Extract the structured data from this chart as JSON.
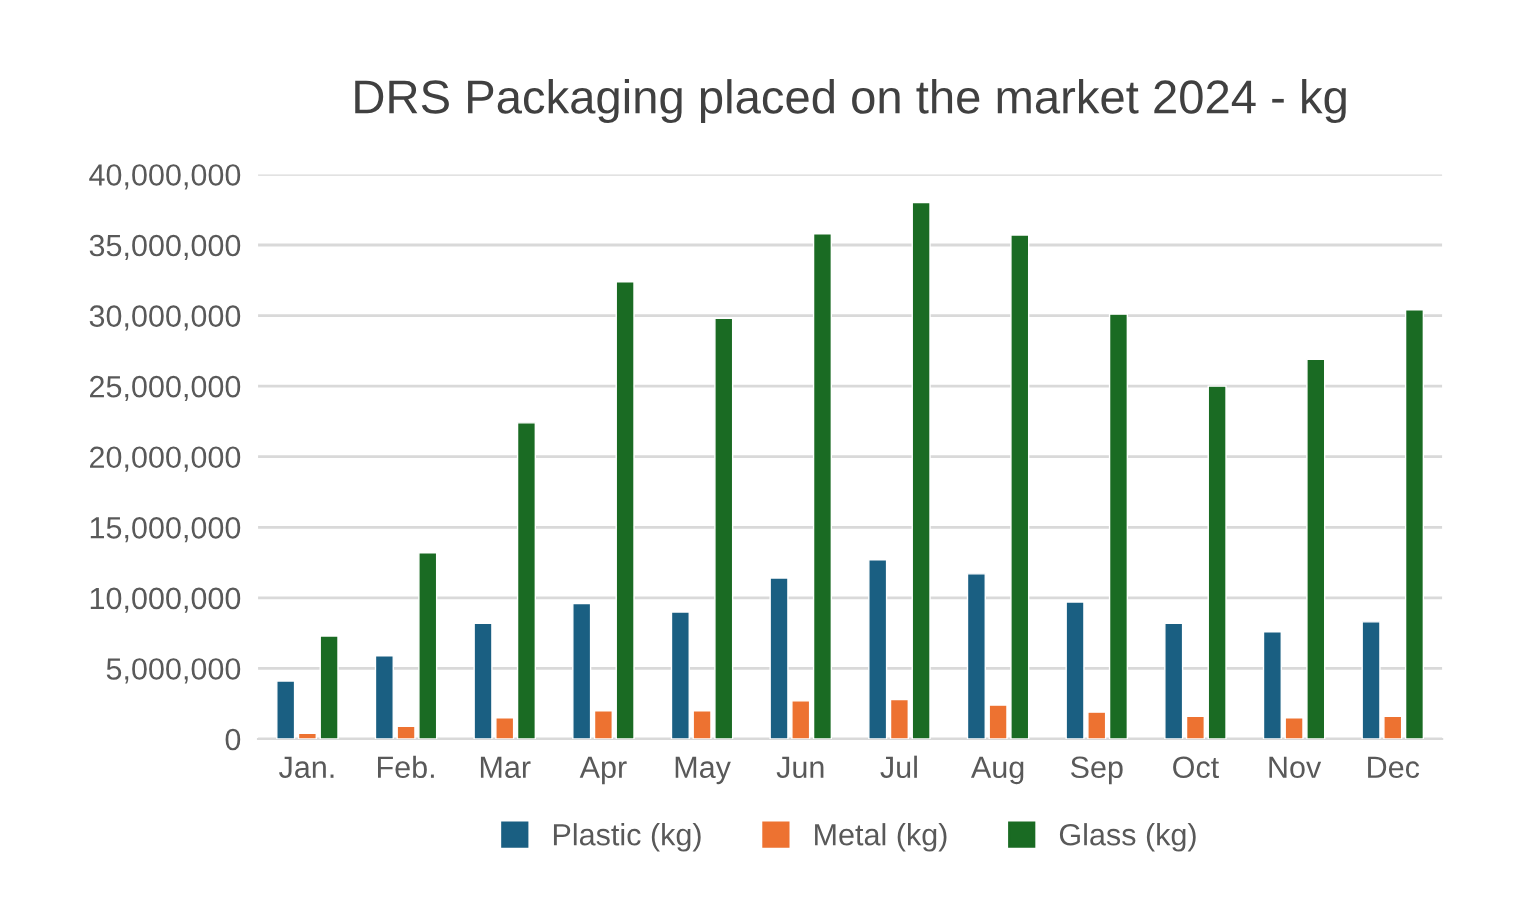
{
  "chart_data": {
    "type": "bar",
    "title": "DRS Packaging placed on the market 2024 - kg",
    "categories": [
      "Jan.",
      "Feb.",
      "Mar",
      "Apr",
      "May",
      "Jun",
      "Jul",
      "Aug",
      "Sep",
      "Oct",
      "Nov",
      "Dec"
    ],
    "series": [
      {
        "name": "Plastic (kg)",
        "color": "#1a5f82",
        "values": [
          4100000,
          5900000,
          8200000,
          9600000,
          9000000,
          11400000,
          12700000,
          11700000,
          9700000,
          8200000,
          7600000,
          8300000
        ]
      },
      {
        "name": "Metal (kg)",
        "color": "#ed7231",
        "values": [
          400000,
          900000,
          1500000,
          2000000,
          2000000,
          2700000,
          2800000,
          2400000,
          1900000,
          1600000,
          1500000,
          1600000
        ]
      },
      {
        "name": "Glass (kg)",
        "color": "#1a6b23",
        "values": [
          7300000,
          13200000,
          22400000,
          32400000,
          29800000,
          35800000,
          38000000,
          35700000,
          30100000,
          25000000,
          26900000,
          30400000
        ]
      }
    ],
    "ylim": [
      0,
      40000000
    ],
    "yticks": [
      {
        "value": 0,
        "label": "0"
      },
      {
        "value": 5000000,
        "label": "5,000,000"
      },
      {
        "value": 10000000,
        "label": "10,000,000"
      },
      {
        "value": 15000000,
        "label": "15,000,000"
      },
      {
        "value": 20000000,
        "label": "20,000,000"
      },
      {
        "value": 25000000,
        "label": "25,000,000"
      },
      {
        "value": 30000000,
        "label": "30,000,000"
      },
      {
        "value": 35000000,
        "label": "35,000,000"
      },
      {
        "value": 40000000,
        "label": "40,000,000"
      }
    ],
    "grid": "y",
    "legend": "bottom"
  }
}
